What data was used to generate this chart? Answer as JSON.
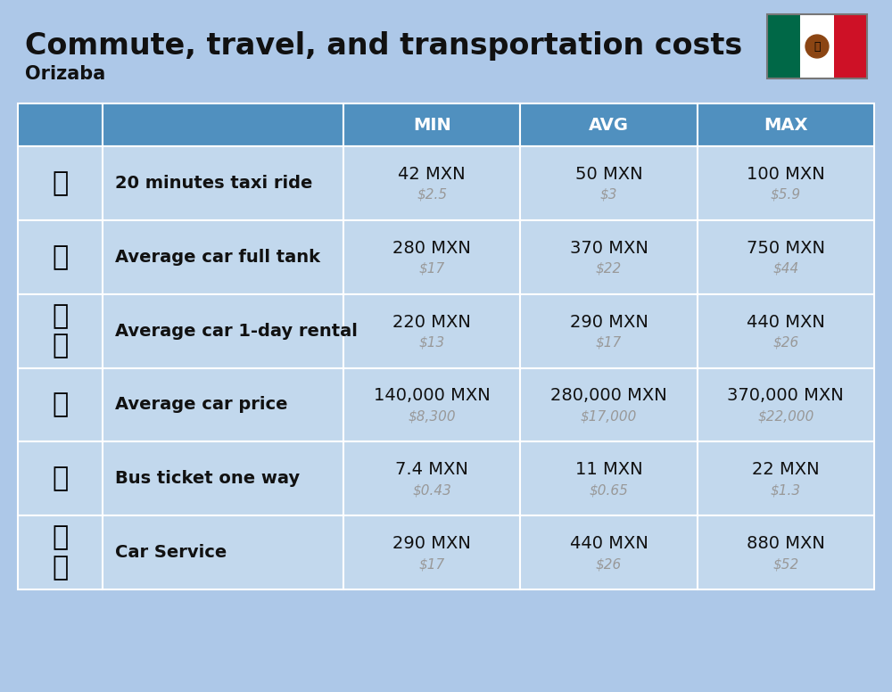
{
  "title": "Commute, travel, and transportation costs",
  "subtitle": "Orizaba",
  "bg_color": "#adc8e8",
  "header_bg": "#5090bf",
  "header_text": "#ffffff",
  "row_bg_even": "#c2d8ed",
  "row_bg_odd": "#b5cde6",
  "icon_bg_even": "#c2d8ed",
  "icon_bg_odd": "#b5cde6",
  "divider_color": "#ffffff",
  "col_headers": [
    "MIN",
    "AVG",
    "MAX"
  ],
  "rows": [
    {
      "label": "20 minutes taxi ride",
      "min_main": "42 MXN",
      "min_sub": "$2.5",
      "avg_main": "50 MXN",
      "avg_sub": "$3",
      "max_main": "100 MXN",
      "max_sub": "$5.9"
    },
    {
      "label": "Average car full tank",
      "min_main": "280 MXN",
      "min_sub": "$17",
      "avg_main": "370 MXN",
      "avg_sub": "$22",
      "max_main": "750 MXN",
      "max_sub": "$44"
    },
    {
      "label": "Average car 1-day rental",
      "min_main": "220 MXN",
      "min_sub": "$13",
      "avg_main": "290 MXN",
      "avg_sub": "$17",
      "max_main": "440 MXN",
      "max_sub": "$26"
    },
    {
      "label": "Average car price",
      "min_main": "140,000 MXN",
      "min_sub": "$8,300",
      "avg_main": "280,000 MXN",
      "avg_sub": "$17,000",
      "max_main": "370,000 MXN",
      "max_sub": "$22,000"
    },
    {
      "label": "Bus ticket one way",
      "min_main": "7.4 MXN",
      "min_sub": "$0.43",
      "avg_main": "11 MXN",
      "avg_sub": "$0.65",
      "max_main": "22 MXN",
      "max_sub": "$1.3"
    },
    {
      "label": "Car Service",
      "min_main": "290 MXN",
      "min_sub": "$17",
      "avg_main": "440 MXN",
      "avg_sub": "$26",
      "max_main": "880 MXN",
      "max_sub": "$52"
    }
  ],
  "title_fontsize": 24,
  "subtitle_fontsize": 15,
  "header_fontsize": 14,
  "label_fontsize": 14,
  "value_fontsize": 14,
  "sub_fontsize": 11,
  "main_text_color": "#111111",
  "sub_text_color": "#999999"
}
